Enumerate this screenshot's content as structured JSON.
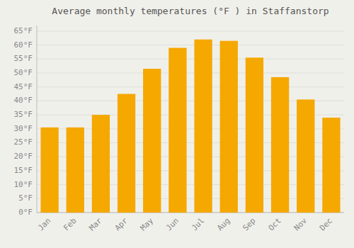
{
  "chart_data": {
    "type": "bar",
    "title": "Average monthly temperatures (°F ) in Staffanstorp",
    "categories": [
      "Jan",
      "Feb",
      "Mar",
      "Apr",
      "May",
      "Jun",
      "Jul",
      "Aug",
      "Sep",
      "Oct",
      "Nov",
      "Dec"
    ],
    "values": [
      30.5,
      30.5,
      35.0,
      42.5,
      51.5,
      59.0,
      62.0,
      61.5,
      55.5,
      48.5,
      40.5,
      34.0
    ],
    "color": "#F5A800",
    "ylim": [
      0,
      67
    ],
    "yticks": [
      {
        "value": 0,
        "label": "0°F"
      },
      {
        "value": 5,
        "label": "5°F"
      },
      {
        "value": 10,
        "label": "10°F"
      },
      {
        "value": 15,
        "label": "15°F"
      },
      {
        "value": 20,
        "label": "20°F"
      },
      {
        "value": 25,
        "label": "25°F"
      },
      {
        "value": 30,
        "label": "30°F"
      },
      {
        "value": 35,
        "label": "35°F"
      },
      {
        "value": 40,
        "label": "40°F"
      },
      {
        "value": 45,
        "label": "45°F"
      },
      {
        "value": 50,
        "label": "50°F"
      },
      {
        "value": 55,
        "label": "55°F"
      },
      {
        "value": 60,
        "label": "60°F"
      },
      {
        "value": 65,
        "label": "65°F"
      }
    ],
    "grid": true
  }
}
